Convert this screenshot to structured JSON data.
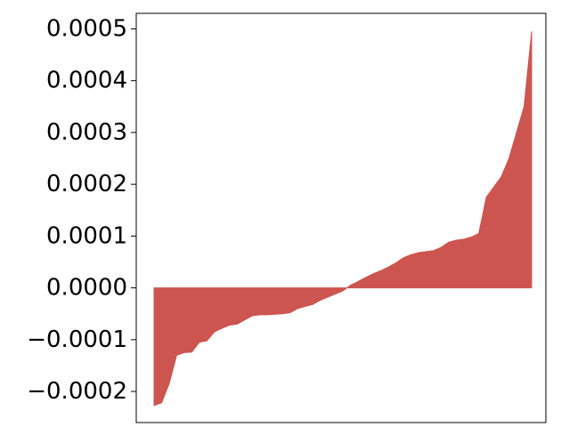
{
  "chart_data": {
    "type": "area",
    "title": "",
    "xlabel": "",
    "ylabel": "",
    "ylim": [
      -0.00026,
      0.00053
    ],
    "y_ticks": [
      {
        "value": 0.0005,
        "label": "0.0005"
      },
      {
        "value": 0.0004,
        "label": "0.0004"
      },
      {
        "value": 0.0003,
        "label": "0.0003"
      },
      {
        "value": 0.0002,
        "label": "0.0002"
      },
      {
        "value": 0.0001,
        "label": "0.0001"
      },
      {
        "value": 0.0,
        "label": "0.0000"
      },
      {
        "value": -0.0001,
        "label": "−0.0001"
      },
      {
        "value": -0.0002,
        "label": "−0.0002"
      }
    ],
    "x_ticks_visible": false,
    "grid": false,
    "legend": "none",
    "fill_color": "#cd5550",
    "x": [
      0,
      2,
      4,
      6,
      8,
      10,
      12,
      14,
      16,
      18,
      20,
      22,
      24,
      26,
      28,
      30,
      32,
      34,
      36,
      38,
      40,
      42,
      44,
      46,
      48,
      50,
      52,
      54,
      56,
      58,
      60,
      62,
      64,
      66,
      68,
      70,
      72,
      74,
      76,
      78,
      80,
      82,
      84,
      86,
      88,
      90,
      92,
      94,
      96,
      98,
      100
    ],
    "values": [
      -0.000227,
      -0.000222,
      -0.000185,
      -0.00013,
      -0.000125,
      -0.000124,
      -0.000105,
      -0.000102,
      -8.5e-05,
      -7.8e-05,
      -7.2e-05,
      -7e-05,
      -6.2e-05,
      -5.4e-05,
      -5.2e-05,
      -5.2e-05,
      -5.1e-05,
      -5e-05,
      -4.8e-05,
      -4e-05,
      -3.6e-05,
      -3.2e-05,
      -2.4e-05,
      -1.8e-05,
      -1.2e-05,
      -6e-06,
      5e-06,
      1.2e-05,
      2e-05,
      2.7e-05,
      3.3e-05,
      4e-05,
      4.8e-05,
      5.8e-05,
      6.4e-05,
      6.8e-05,
      7e-05,
      7.2e-05,
      7.8e-05,
      8.8e-05,
      9.2e-05,
      9.4e-05,
      9.8e-05,
      0.000105,
      0.000175,
      0.000195,
      0.000215,
      0.00025,
      0.0003,
      0.00035,
      0.000495
    ]
  }
}
